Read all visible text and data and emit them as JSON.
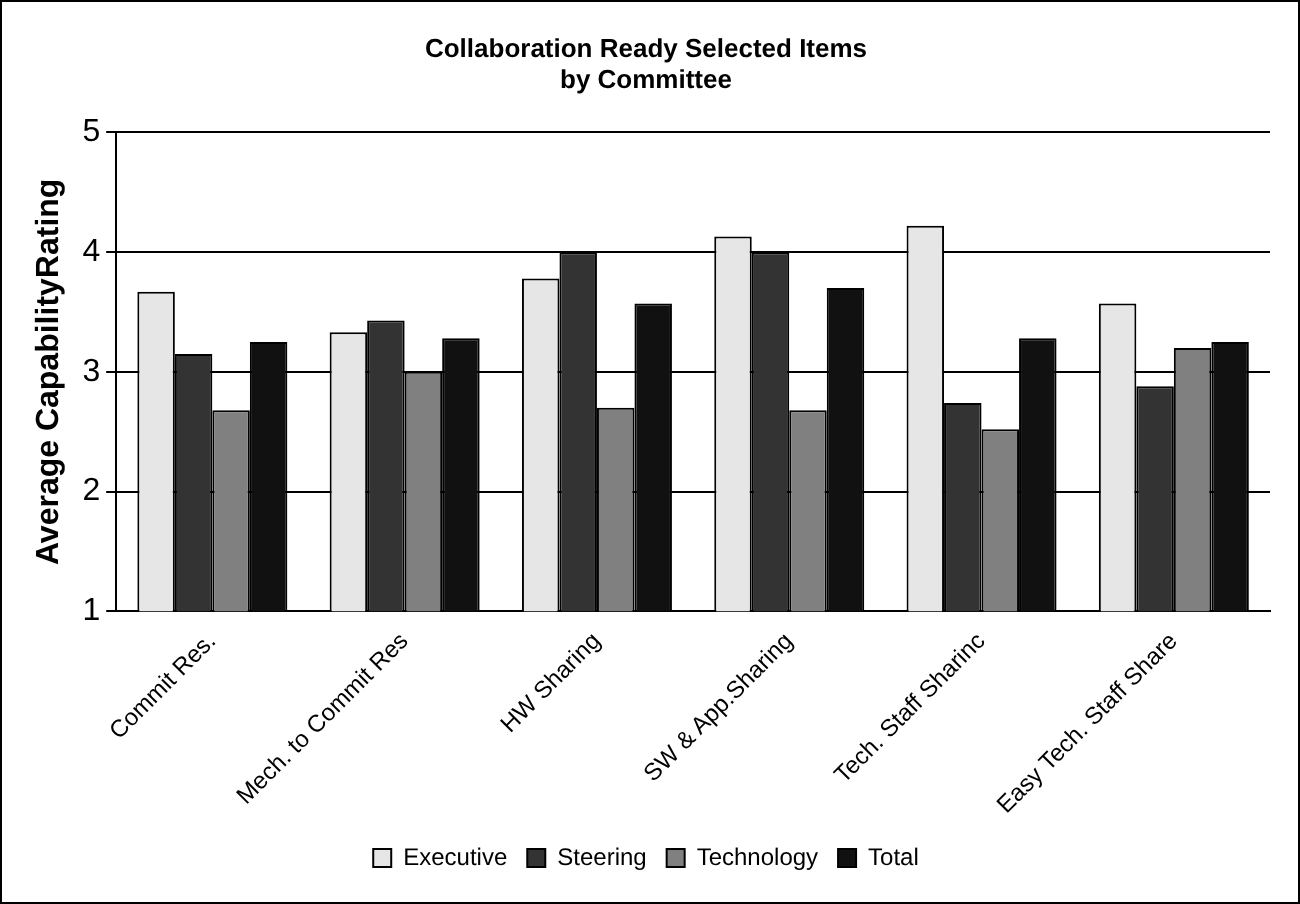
{
  "chart_data": {
    "type": "bar",
    "title": [
      "Collaboration Ready Selected Items",
      "by Committee"
    ],
    "ylabel": "Average CapabilityRating",
    "categories": [
      "Commit Res.",
      "Mech. to Commit Res",
      "HW Sharing",
      "SW & App.Sharing",
      "Tech. Staff Sharinc",
      "Easy Tech. Staff Share"
    ],
    "series": [
      {
        "name": "Executive",
        "color": "#e6e6e6",
        "values": [
          3.67,
          3.33,
          3.78,
          4.13,
          4.22,
          3.57
        ]
      },
      {
        "name": "Steering",
        "color": "#333333",
        "values": [
          3.15,
          3.43,
          4.0,
          4.0,
          2.74,
          2.88
        ]
      },
      {
        "name": "Technology",
        "color": "#808080",
        "values": [
          2.68,
          3.0,
          2.7,
          2.68,
          2.52,
          3.2
        ]
      },
      {
        "name": "Total",
        "color": "#111111",
        "values": [
          3.25,
          3.28,
          3.57,
          3.7,
          3.28,
          3.25
        ]
      }
    ],
    "ylim": [
      1,
      5
    ],
    "yticks": [
      1,
      2,
      3,
      4,
      5
    ],
    "grid": "y",
    "legend": "bottom"
  }
}
